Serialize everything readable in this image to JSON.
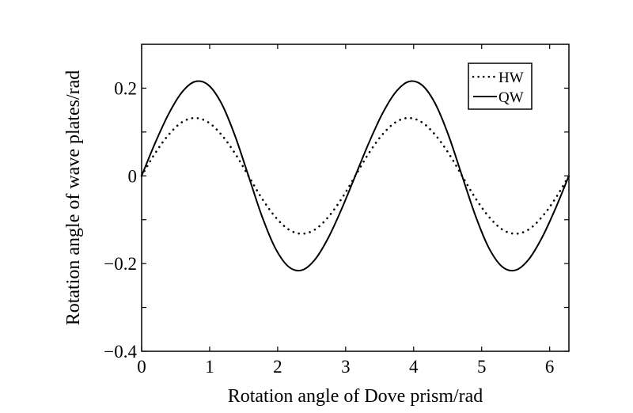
{
  "chart_data": {
    "type": "line",
    "title": "",
    "xlabel": "Rotation angle of Dove prism/rad",
    "ylabel": "Rotation angle of wave plates/rad",
    "xlim": [
      0,
      6.283
    ],
    "ylim": [
      -0.4,
      0.3
    ],
    "x_ticks": [
      0,
      1,
      2,
      3,
      4,
      5,
      6
    ],
    "x_tick_labels": [
      "0",
      "1",
      "2",
      "3",
      "4",
      "5",
      "6"
    ],
    "y_ticks": [
      -0.4,
      -0.2,
      0,
      0.2
    ],
    "y_tick_labels": [
      "−0.4",
      "−0.2",
      "0",
      "0.2"
    ],
    "y_minor_ticks": [
      -0.3,
      -0.1,
      0.1
    ],
    "grid": false,
    "legend_position": "top-right",
    "x": [
      0,
      0.196,
      0.393,
      0.589,
      0.785,
      0.982,
      1.178,
      1.374,
      1.571,
      1.767,
      1.963,
      2.16,
      2.356,
      2.553,
      2.749,
      2.945,
      3.142,
      3.338,
      3.534,
      3.731,
      3.927,
      4.123,
      4.32,
      4.516,
      4.712,
      4.909,
      5.105,
      5.301,
      5.498,
      5.694,
      5.89,
      6.087,
      6.283
    ],
    "series": [
      {
        "name": "HW",
        "style": "dotted",
        "color": "#000000",
        "values": [
          0,
          0.051,
          0.093,
          0.122,
          0.132,
          0.122,
          0.093,
          0.051,
          0,
          -0.051,
          -0.093,
          -0.122,
          -0.132,
          -0.122,
          -0.093,
          -0.051,
          0,
          0.051,
          0.093,
          0.122,
          0.132,
          0.122,
          0.093,
          0.051,
          0,
          -0.051,
          -0.093,
          -0.122,
          -0.132,
          -0.122,
          -0.093,
          -0.051,
          0
        ]
      },
      {
        "name": "QW",
        "style": "solid",
        "color": "#000000",
        "values": [
          0,
          0.074,
          0.14,
          0.19,
          0.215,
          0.207,
          0.164,
          0.091,
          0,
          -0.091,
          -0.164,
          -0.207,
          -0.215,
          -0.19,
          -0.14,
          -0.074,
          0,
          0.074,
          0.14,
          0.19,
          0.215,
          0.207,
          0.164,
          0.091,
          0,
          -0.091,
          -0.164,
          -0.207,
          -0.215,
          -0.19,
          -0.14,
          -0.074,
          0
        ]
      }
    ]
  }
}
